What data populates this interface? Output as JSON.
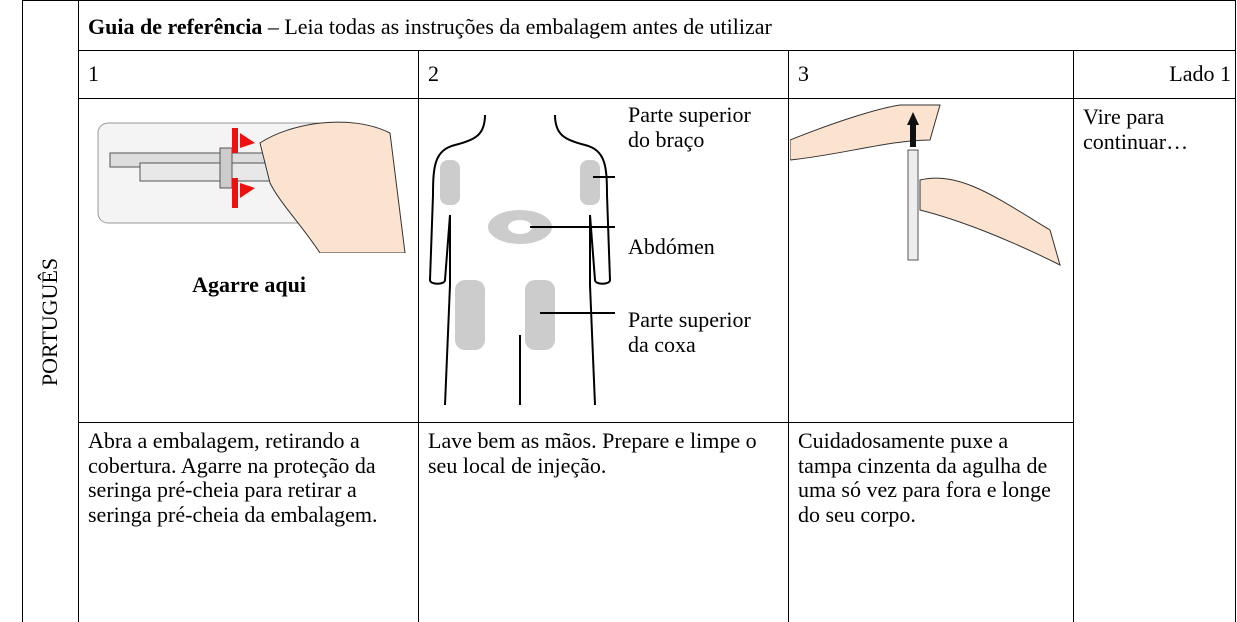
{
  "sidebar": "PORTUGUÊS",
  "header": {
    "title": "Guia de referência",
    "subtitle": "– Leia todas as instruções da embalagem antes de utilizar"
  },
  "columns": [
    "1",
    "2",
    "3",
    "Lado 1"
  ],
  "steps": [
    {
      "caption": "Agarre aqui",
      "text": "Abra a embalagem, retirando a cobertura. Agarre na proteção da seringa pré-cheia para retirar a seringa pré-cheia da embalagem."
    },
    {
      "labels": [
        "Parte superior do braço",
        "Abdómen",
        "Parte superior da coxa"
      ],
      "text": "Lave bem as mãos. Prepare e limpe o seu local de injeção."
    },
    {
      "text": "Cuidadosamente puxe a tampa cinzenta da agulha de uma só vez para fora e longe do seu corpo."
    }
  ],
  "side_note": "Vire para continuar…"
}
